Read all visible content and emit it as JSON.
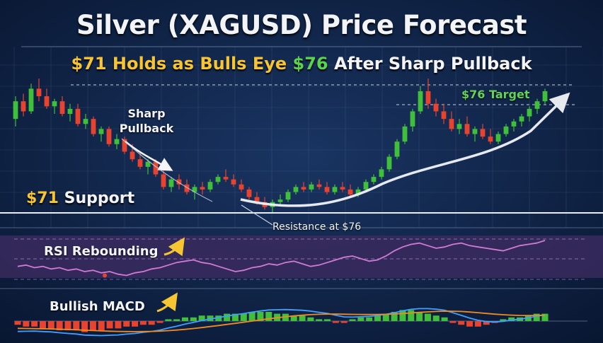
{
  "title": "Silver (XAGUSD) Price Forecast",
  "subtitle": {
    "part1": "$71 Holds as Bulls Eye ",
    "part2": "$76",
    "part3": " After Sharp Pullback"
  },
  "annotations": {
    "support_price": "$71",
    "support_word": " Support",
    "target": "$76 Target",
    "pullback": "Sharp Pullback",
    "resistance": "Resistance at $76",
    "rsi": "RSI Rebounding",
    "macd": "Bullish MACD"
  },
  "colors": {
    "background": "#0c1e3c",
    "bull": "#3fbf3a",
    "bear": "#e8432e",
    "gold": "#f7c531",
    "green_text": "#5bd44d",
    "rsi_line": "#d07ad6",
    "rsi_panel": "#3a2a5e",
    "macd_line": "#3fa0ff",
    "signal_line": "#f08a24"
  },
  "chart_data": [
    {
      "type": "candlestick",
      "title": "Silver (XAGUSD) Price Forecast",
      "grid": true,
      "levels": [
        {
          "label": "$71 Support",
          "value": 71
        },
        {
          "label": "$76 Target",
          "value": 76
        }
      ],
      "ohlc": [
        [
          74.2,
          75.1,
          73.9,
          74.9
        ],
        [
          74.9,
          75.2,
          74.3,
          74.5
        ],
        [
          74.5,
          75.6,
          74.4,
          75.4
        ],
        [
          75.4,
          75.8,
          74.9,
          75.1
        ],
        [
          75.1,
          75.4,
          74.6,
          74.7
        ],
        [
          74.7,
          75.0,
          74.4,
          74.9
        ],
        [
          74.9,
          75.1,
          74.3,
          74.4
        ],
        [
          74.4,
          74.8,
          74.1,
          74.6
        ],
        [
          74.6,
          74.8,
          73.9,
          74.0
        ],
        [
          74.0,
          74.4,
          73.8,
          74.2
        ],
        [
          74.2,
          74.3,
          73.5,
          73.6
        ],
        [
          73.6,
          73.9,
          73.3,
          73.8
        ],
        [
          73.8,
          73.9,
          73.1,
          73.2
        ],
        [
          73.2,
          73.6,
          73.0,
          73.4
        ],
        [
          73.4,
          73.5,
          72.8,
          72.9
        ],
        [
          72.9,
          73.2,
          72.5,
          72.6
        ],
        [
          72.6,
          72.9,
          72.2,
          72.3
        ],
        [
          72.3,
          72.6,
          72.0,
          72.5
        ],
        [
          72.5,
          72.6,
          71.9,
          72.0
        ],
        [
          72.0,
          72.2,
          71.4,
          71.5
        ],
        [
          71.5,
          71.9,
          71.3,
          71.8
        ],
        [
          71.8,
          72.0,
          71.4,
          71.6
        ],
        [
          71.6,
          71.8,
          71.2,
          71.3
        ],
        [
          71.3,
          71.6,
          71.0,
          71.5
        ],
        [
          71.5,
          71.7,
          71.2,
          71.4
        ],
        [
          71.4,
          71.8,
          71.3,
          71.7
        ],
        [
          71.7,
          72.0,
          71.6,
          71.9
        ],
        [
          71.9,
          72.2,
          71.7,
          71.8
        ],
        [
          71.8,
          72.0,
          71.5,
          71.6
        ],
        [
          71.6,
          71.8,
          71.3,
          71.4
        ],
        [
          71.4,
          71.5,
          71.0,
          71.1
        ],
        [
          71.1,
          71.3,
          70.8,
          70.9
        ],
        [
          70.9,
          71.1,
          70.6,
          70.7
        ],
        [
          70.7,
          71.0,
          70.5,
          70.9
        ],
        [
          70.9,
          71.2,
          70.8,
          71.0
        ],
        [
          71.0,
          71.4,
          70.9,
          71.3
        ],
        [
          71.3,
          71.6,
          71.2,
          71.5
        ],
        [
          71.5,
          71.7,
          71.3,
          71.4
        ],
        [
          71.4,
          71.7,
          71.3,
          71.6
        ],
        [
          71.6,
          71.8,
          71.4,
          71.5
        ],
        [
          71.5,
          71.7,
          71.2,
          71.3
        ],
        [
          71.3,
          71.6,
          71.2,
          71.5
        ],
        [
          71.5,
          71.7,
          71.3,
          71.4
        ],
        [
          71.4,
          71.6,
          71.1,
          71.2
        ],
        [
          71.2,
          71.5,
          71.1,
          71.4
        ],
        [
          71.4,
          71.8,
          71.3,
          71.7
        ],
        [
          71.7,
          72.0,
          71.6,
          71.9
        ],
        [
          71.9,
          72.3,
          71.8,
          72.2
        ],
        [
          72.2,
          72.8,
          72.1,
          72.7
        ],
        [
          72.7,
          73.4,
          72.6,
          73.3
        ],
        [
          73.3,
          74.0,
          73.2,
          73.9
        ],
        [
          73.9,
          74.6,
          73.7,
          74.5
        ],
        [
          74.5,
          75.5,
          74.4,
          75.3
        ],
        [
          75.3,
          75.8,
          74.6,
          74.8
        ],
        [
          74.8,
          75.0,
          74.3,
          74.5
        ],
        [
          74.5,
          74.8,
          74.0,
          74.2
        ],
        [
          74.2,
          74.5,
          73.7,
          73.8
        ],
        [
          73.8,
          74.2,
          73.6,
          74.0
        ],
        [
          74.0,
          74.3,
          73.5,
          73.6
        ],
        [
          73.6,
          73.9,
          73.3,
          73.8
        ],
        [
          73.8,
          74.0,
          73.4,
          73.5
        ],
        [
          73.5,
          73.8,
          73.2,
          73.3
        ],
        [
          73.3,
          73.7,
          73.2,
          73.6
        ],
        [
          73.6,
          74.0,
          73.5,
          73.9
        ],
        [
          73.9,
          74.2,
          73.7,
          74.1
        ],
        [
          74.1,
          74.4,
          73.9,
          74.3
        ],
        [
          74.3,
          74.7,
          74.1,
          74.6
        ],
        [
          74.6,
          75.0,
          74.4,
          74.9
        ],
        [
          74.9,
          75.4,
          74.8,
          75.3
        ]
      ]
    },
    {
      "type": "line",
      "title": "RSI Rebounding",
      "series": [
        {
          "values": [
            40,
            41,
            39,
            40,
            38,
            39,
            37,
            38,
            36,
            37,
            35,
            36,
            34,
            33,
            35,
            36,
            38,
            39,
            41,
            43,
            44,
            45,
            43,
            42,
            40,
            38,
            36,
            37,
            39,
            40,
            42,
            41,
            43,
            44,
            42,
            40,
            41,
            43,
            45,
            47,
            48,
            46,
            44,
            45,
            48,
            52,
            55,
            57,
            58,
            56,
            54,
            55,
            57,
            58,
            56,
            55,
            54,
            53,
            52,
            54,
            56,
            57,
            58,
            60
          ]
        }
      ]
    },
    {
      "type": "bar",
      "title": "Bullish MACD",
      "series": [
        {
          "values": [
            -0.2,
            -0.3,
            -0.3,
            -0.4,
            -0.4,
            -0.5,
            -0.5,
            -0.5,
            -0.6,
            -0.5,
            -0.5,
            -0.4,
            -0.4,
            -0.3,
            -0.3,
            -0.2,
            -0.2,
            -0.1,
            0.1,
            0.1,
            0.2,
            0.2,
            0.3,
            0.3,
            0.3,
            0.4,
            0.4,
            0.4,
            0.5,
            0.5,
            0.5,
            0.4,
            0.4,
            0.3,
            0.3,
            0.2,
            0.1,
            0.1,
            -0.1,
            -0.1,
            0.1,
            0.2,
            0.2,
            0.3,
            0.4,
            0.5,
            0.6,
            0.6,
            0.5,
            0.4,
            0.3,
            0.2,
            -0.1,
            -0.2,
            -0.3,
            -0.3,
            -0.2,
            -0.1,
            0.1,
            0.2,
            0.2,
            0.3,
            0.4,
            0.4
          ]
        }
      ]
    }
  ]
}
